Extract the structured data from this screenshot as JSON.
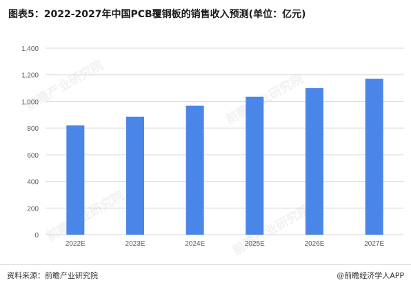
{
  "title": "图表5：2022-2027年中国PCB覆铜板的销售收入预测(单位：亿元)",
  "footer": {
    "source": "资料来源：前瞻产业研究院",
    "brand": "@前瞻经济学人APP"
  },
  "watermark": "前瞻产业研究院",
  "colors": {
    "bar": "#4A86E8",
    "grid": "#d9d9d9",
    "axis_text": "#595959"
  },
  "chart_data": {
    "type": "bar",
    "title": "图表5：2022-2027年中国PCB覆铜板的销售收入预测(单位：亿元)",
    "categories": [
      "2022E",
      "2023E",
      "2024E",
      "2025E",
      "2026E",
      "2027E"
    ],
    "values": [
      820,
      885,
      968,
      1035,
      1100,
      1170
    ],
    "ylim": [
      0,
      1400
    ],
    "yticks": [
      "0",
      "200",
      "400",
      "600",
      "800",
      "1,000",
      "1,200",
      "1,400"
    ],
    "xlabel": "",
    "ylabel": "",
    "grid": true,
    "legend": "none"
  }
}
